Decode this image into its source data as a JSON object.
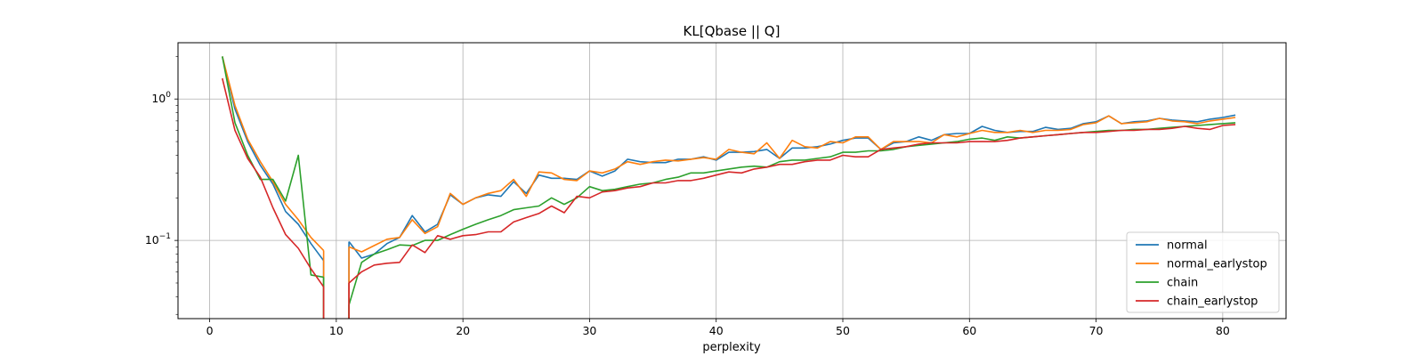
{
  "chart_data": {
    "type": "line",
    "title": "KL[Qbase || Q]",
    "xlabel": "perplexity",
    "ylabel": "",
    "xlim": [
      -2.5,
      85
    ],
    "ylim": [
      0.028,
      2.5
    ],
    "yscale": "log",
    "xticks": [
      0,
      10,
      20,
      30,
      40,
      50,
      60,
      70,
      80
    ],
    "yticks": [
      {
        "value": 0.1,
        "label_base": "10",
        "label_exp": "−1"
      },
      {
        "value": 1,
        "label_base": "10",
        "label_exp": "0"
      }
    ],
    "grid": true,
    "legend_position": "lower-right",
    "x": [
      1,
      2,
      3,
      4,
      5,
      6,
      7,
      8,
      9,
      10,
      11,
      12,
      13,
      14,
      15,
      16,
      17,
      18,
      19,
      20,
      21,
      22,
      23,
      24,
      25,
      26,
      27,
      28,
      29,
      30,
      31,
      32,
      33,
      34,
      35,
      36,
      37,
      38,
      39,
      40,
      41,
      42,
      43,
      44,
      45,
      46,
      47,
      48,
      49,
      50,
      51,
      52,
      53,
      54,
      55,
      56,
      57,
      58,
      59,
      60,
      61,
      62,
      63,
      64,
      65,
      66,
      67,
      68,
      69,
      70,
      71,
      72,
      73,
      74,
      75,
      76,
      77,
      78,
      79,
      80,
      81
    ],
    "series": [
      {
        "name": "normal",
        "color": "#1f77b4",
        "values": [
          2.0,
          0.85,
          0.5,
          0.34,
          0.25,
          0.16,
          0.13,
          0.095,
          0.072,
          null,
          0.098,
          0.075,
          0.08,
          0.095,
          0.105,
          0.15,
          0.115,
          0.13,
          0.21,
          0.18,
          0.2,
          0.21,
          0.205,
          0.26,
          0.215,
          0.29,
          0.275,
          0.275,
          0.27,
          0.31,
          0.285,
          0.31,
          0.375,
          0.36,
          0.355,
          0.355,
          0.375,
          0.375,
          0.39,
          0.37,
          0.42,
          0.42,
          0.425,
          0.44,
          0.38,
          0.45,
          0.45,
          0.46,
          0.48,
          0.51,
          0.53,
          0.53,
          0.44,
          0.49,
          0.5,
          0.54,
          0.51,
          0.56,
          0.57,
          0.57,
          0.64,
          0.6,
          0.58,
          0.59,
          0.59,
          0.63,
          0.61,
          0.62,
          0.67,
          0.69,
          0.76,
          0.67,
          0.69,
          0.7,
          0.73,
          0.71,
          0.7,
          0.69,
          0.72,
          0.74,
          0.77
        ]
      },
      {
        "name": "normal_earlystop",
        "color": "#ff7f0e",
        "values": [
          2.0,
          0.9,
          0.52,
          0.36,
          0.26,
          0.18,
          0.14,
          0.105,
          0.085,
          null,
          0.09,
          0.083,
          0.092,
          0.102,
          0.105,
          0.14,
          0.112,
          0.125,
          0.215,
          0.18,
          0.2,
          0.215,
          0.225,
          0.27,
          0.205,
          0.305,
          0.3,
          0.27,
          0.265,
          0.31,
          0.3,
          0.32,
          0.36,
          0.345,
          0.36,
          0.37,
          0.365,
          0.375,
          0.385,
          0.375,
          0.44,
          0.42,
          0.41,
          0.49,
          0.38,
          0.51,
          0.46,
          0.45,
          0.5,
          0.49,
          0.54,
          0.54,
          0.44,
          0.5,
          0.5,
          0.5,
          0.49,
          0.56,
          0.54,
          0.57,
          0.6,
          0.58,
          0.58,
          0.6,
          0.58,
          0.6,
          0.6,
          0.61,
          0.66,
          0.68,
          0.76,
          0.67,
          0.68,
          0.69,
          0.73,
          0.7,
          0.69,
          0.67,
          0.7,
          0.72,
          0.74
        ]
      },
      {
        "name": "chain",
        "color": "#2ca02c",
        "values": [
          2.0,
          0.68,
          0.4,
          0.27,
          0.27,
          0.19,
          0.4,
          0.057,
          0.055,
          null,
          0.035,
          0.07,
          0.08,
          0.086,
          0.093,
          0.092,
          0.1,
          0.1,
          0.11,
          0.12,
          0.13,
          0.14,
          0.15,
          0.165,
          0.17,
          0.175,
          0.2,
          0.18,
          0.2,
          0.24,
          0.225,
          0.23,
          0.24,
          0.25,
          0.255,
          0.27,
          0.28,
          0.3,
          0.3,
          0.31,
          0.32,
          0.33,
          0.335,
          0.33,
          0.36,
          0.37,
          0.37,
          0.38,
          0.39,
          0.42,
          0.42,
          0.43,
          0.43,
          0.44,
          0.46,
          0.47,
          0.48,
          0.49,
          0.5,
          0.52,
          0.53,
          0.51,
          0.54,
          0.53,
          0.54,
          0.55,
          0.56,
          0.57,
          0.58,
          0.59,
          0.6,
          0.6,
          0.61,
          0.61,
          0.62,
          0.63,
          0.64,
          0.65,
          0.66,
          0.67,
          0.68
        ]
      },
      {
        "name": "chain_earlystop",
        "color": "#d62728",
        "values": [
          1.4,
          0.6,
          0.38,
          0.28,
          0.17,
          0.11,
          0.088,
          0.063,
          0.047,
          null,
          0.05,
          0.06,
          0.067,
          0.069,
          0.07,
          0.093,
          0.082,
          0.108,
          0.102,
          0.108,
          0.11,
          0.115,
          0.115,
          0.135,
          0.145,
          0.155,
          0.175,
          0.157,
          0.205,
          0.2,
          0.22,
          0.225,
          0.235,
          0.24,
          0.255,
          0.255,
          0.265,
          0.265,
          0.275,
          0.29,
          0.305,
          0.3,
          0.32,
          0.33,
          0.345,
          0.345,
          0.36,
          0.37,
          0.37,
          0.4,
          0.39,
          0.39,
          0.44,
          0.45,
          0.46,
          0.48,
          0.49,
          0.49,
          0.49,
          0.5,
          0.5,
          0.5,
          0.51,
          0.53,
          0.54,
          0.55,
          0.56,
          0.57,
          0.58,
          0.58,
          0.59,
          0.6,
          0.6,
          0.61,
          0.61,
          0.62,
          0.64,
          0.62,
          0.61,
          0.65,
          0.66
        ]
      }
    ]
  }
}
